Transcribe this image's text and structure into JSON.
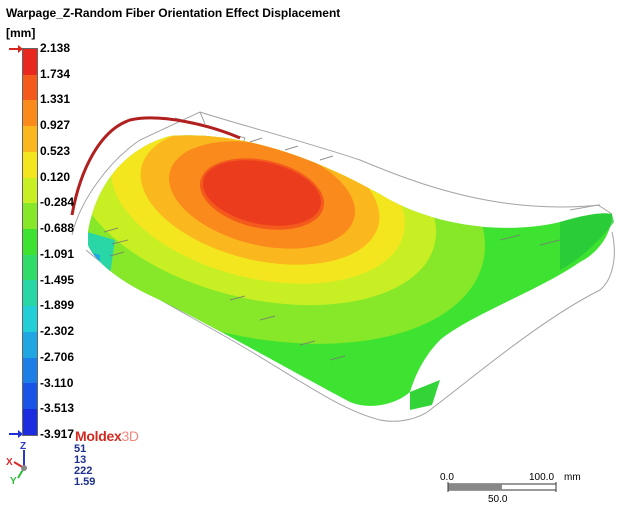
{
  "title": "Warpage_Z-Random Fiber Orientation Effect Displacement",
  "unit": "[mm]",
  "legend": {
    "max_value": 2.138,
    "min_value": -3.917,
    "ticks": [
      "2.138",
      "1.734",
      "1.331",
      "0.927",
      "0.523",
      "0.120",
      "-0.284",
      "-0.688",
      "-1.091",
      "-1.495",
      "-1.899",
      "-2.302",
      "-2.706",
      "-3.110",
      "-3.513",
      "-3.917"
    ],
    "colors": [
      "#e8281e",
      "#f45a1c",
      "#fb8a1c",
      "#fbb81e",
      "#f4e61e",
      "#c8ef24",
      "#86e829",
      "#3ee230",
      "#2fdc6a",
      "#28d6a6",
      "#23cfd6",
      "#1fa6e3",
      "#1c7ee6",
      "#1a54e6",
      "#1c2de0"
    ],
    "marker_top_color": "#d7261e",
    "marker_bottom_color": "#1d2fd6"
  },
  "logo": {
    "text_a": "Moldex",
    "text_b": "3D"
  },
  "axes": {
    "z": "Z",
    "x": "X",
    "y": "Y"
  },
  "view_values": [
    "51",
    "13",
    "222",
    "1.59"
  ],
  "scale": {
    "left": "0.0",
    "right": "100.0",
    "unit": "mm",
    "mid": "50.0"
  }
}
